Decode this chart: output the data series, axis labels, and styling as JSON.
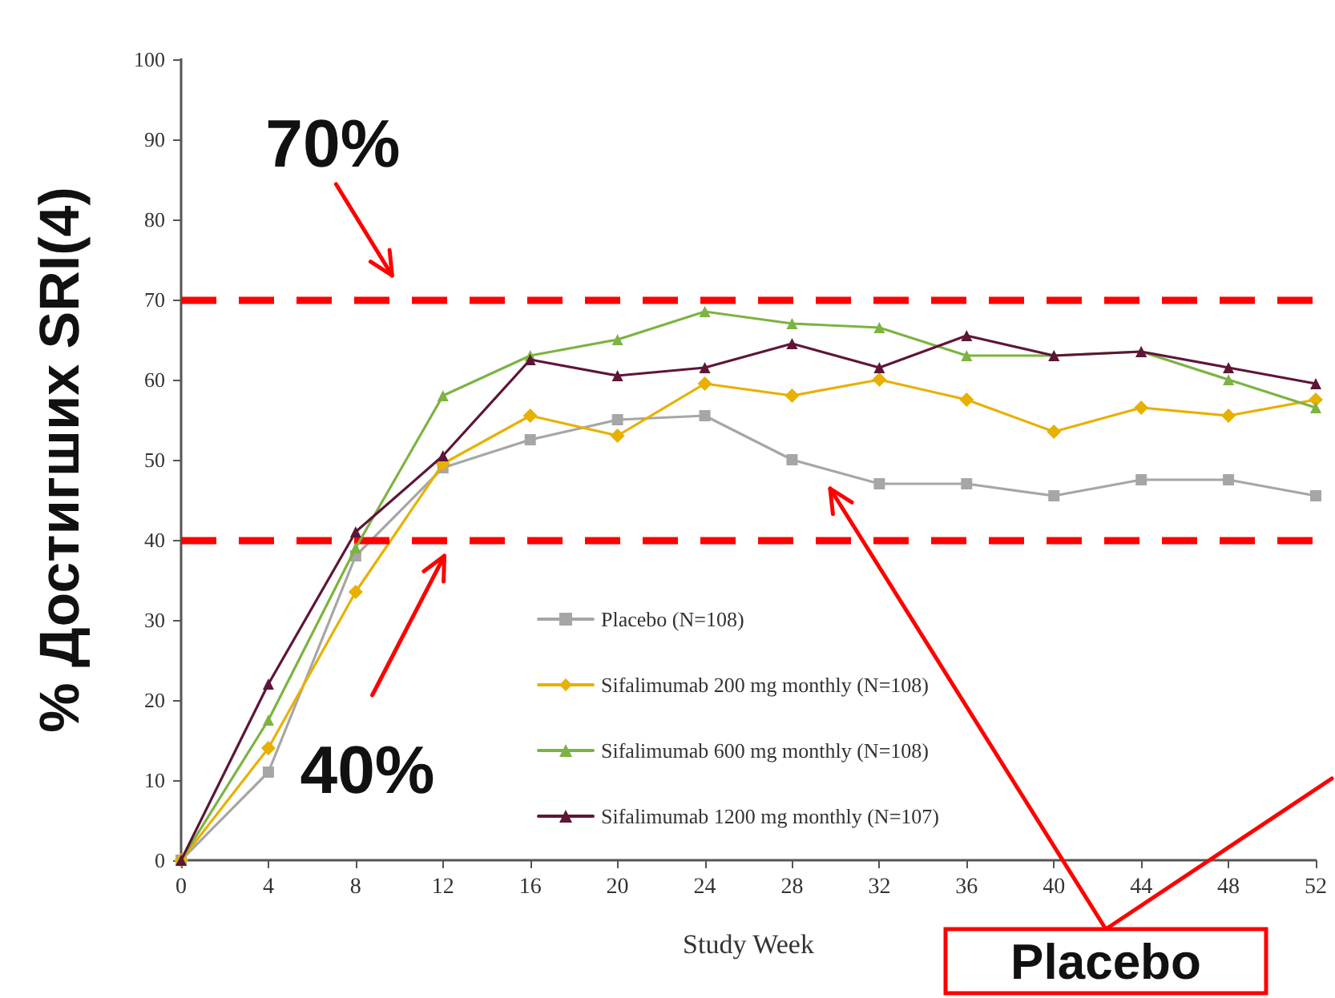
{
  "chart_data": {
    "type": "line",
    "xlabel": "Study Week",
    "ylabel": "% Достигших SRI(4)",
    "x": [
      0,
      4,
      8,
      12,
      16,
      20,
      24,
      28,
      32,
      36,
      40,
      44,
      48,
      52
    ],
    "xlim": [
      0,
      52
    ],
    "xticks": [
      0,
      4,
      8,
      12,
      16,
      20,
      24,
      28,
      32,
      36,
      40,
      44,
      48,
      52
    ],
    "ylim": [
      0,
      100
    ],
    "yticks": [
      0,
      10,
      20,
      30,
      40,
      50,
      60,
      70,
      80,
      90,
      100
    ],
    "grid": false,
    "legend": "bottom",
    "line_style": "solid",
    "series": [
      {
        "name": "Placebo (N=108)",
        "color": "#a6a6a6",
        "marker": "square",
        "values": [
          0,
          11,
          38,
          49,
          52.5,
          55,
          55.5,
          50,
          47,
          47,
          45.5,
          47.5,
          47.5,
          45.5
        ]
      },
      {
        "name": "Sifalimumab 200 mg monthly (N=108)",
        "color": "#e8b000",
        "marker": "diamond",
        "values": [
          0,
          14,
          33.5,
          49.5,
          55.5,
          53,
          59.5,
          58,
          60,
          57.5,
          53.5,
          56.5,
          55.5,
          57.5
        ]
      },
      {
        "name": "Sifalimumab 600 mg monthly (N=108)",
        "color": "#7cb342",
        "marker": "triangle",
        "values": [
          0,
          17.5,
          39,
          58,
          63,
          65,
          68.5,
          67,
          66.5,
          63,
          63,
          63.5,
          60,
          56.5
        ]
      },
      {
        "name": "Sifalimumab 1200 mg monthly (N=107)",
        "color": "#5e1538",
        "marker": "triangle",
        "values": [
          0,
          22,
          41,
          50.5,
          62.5,
          60.5,
          61.5,
          64.5,
          61.5,
          65.5,
          63,
          63.5,
          61.5,
          59.5
        ]
      }
    ],
    "ref_lines": [
      {
        "axis": "y",
        "value": 70,
        "label": "70%",
        "color": "#ff0000",
        "line_style": "dashed"
      },
      {
        "axis": "y",
        "value": 40,
        "label": "40%",
        "color": "#ff0000",
        "line_style": "dashed"
      }
    ],
    "annotations": [
      "Placebo"
    ]
  }
}
